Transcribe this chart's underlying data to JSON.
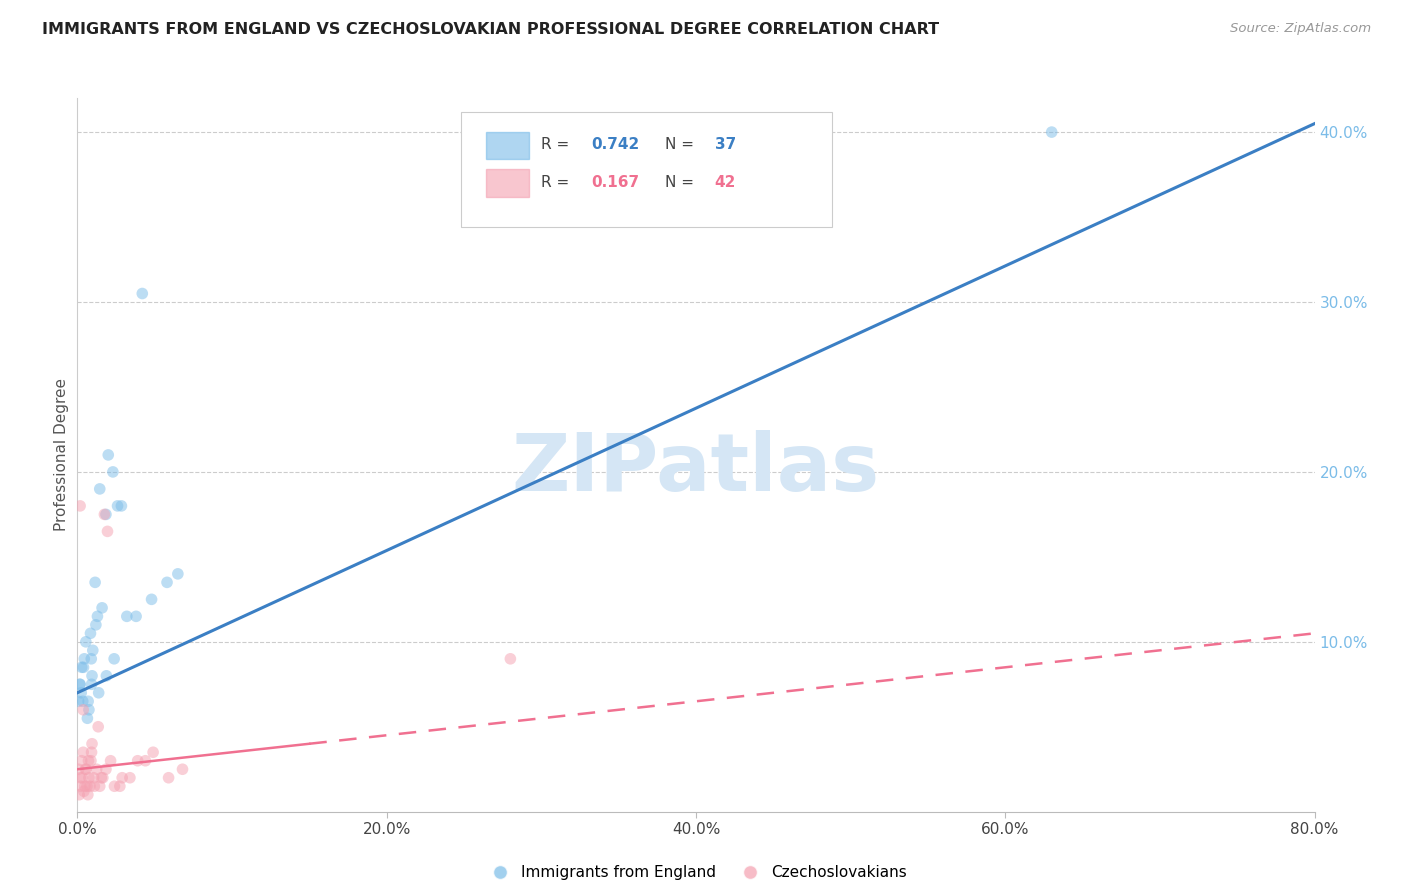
{
  "title": "IMMIGRANTS FROM ENGLAND VS CZECHOSLOVAKIAN PROFESSIONAL DEGREE CORRELATION CHART",
  "source": "Source: ZipAtlas.com",
  "ylabel": "Professional Degree",
  "x_min": 0.0,
  "x_max": 80.0,
  "y_min": 0.0,
  "y_max": 42.0,
  "yticks": [
    10,
    20,
    30,
    40
  ],
  "xticks": [
    0,
    20,
    40,
    60,
    80
  ],
  "legend_england_label": "Immigrants from England",
  "legend_czech_label": "Czechoslovakians",
  "blue_color": "#7BBCE8",
  "pink_color": "#F4A0B0",
  "blue_line_color": "#3B7FC4",
  "pink_line_color": "#F07090",
  "watermark": "ZIPatlas",
  "watermark_color": "#D5E6F5",
  "r_england": "0.742",
  "n_england": "37",
  "r_czech": "0.167",
  "n_czech": "42",
  "eng_line_x0": 0.0,
  "eng_line_y0": 7.0,
  "eng_line_x1": 80.0,
  "eng_line_y1": 40.5,
  "czech_line_x0": 0.0,
  "czech_line_y0": 2.5,
  "czech_line_x1": 80.0,
  "czech_line_y1": 10.5,
  "czech_solid_end": 15.0,
  "england_x": [
    0.15,
    0.4,
    0.25,
    0.7,
    0.9,
    1.0,
    1.3,
    0.35,
    0.55,
    0.85,
    0.95,
    1.15,
    1.2,
    1.45,
    1.6,
    1.85,
    2.0,
    2.3,
    2.6,
    3.2,
    3.8,
    4.8,
    5.8,
    6.5,
    0.08,
    0.28,
    0.45,
    0.65,
    0.92,
    1.38,
    1.88,
    2.38,
    2.85,
    4.2,
    0.18,
    0.75,
    63.0
  ],
  "england_y": [
    7.5,
    8.5,
    7.0,
    6.5,
    9.0,
    9.5,
    11.5,
    6.5,
    10.0,
    10.5,
    8.0,
    13.5,
    11.0,
    19.0,
    12.0,
    17.5,
    21.0,
    20.0,
    18.0,
    11.5,
    11.5,
    12.5,
    13.5,
    14.0,
    6.5,
    8.5,
    9.0,
    5.5,
    7.5,
    7.0,
    8.0,
    9.0,
    18.0,
    30.5,
    7.5,
    6.0,
    40.0
  ],
  "czech_x": [
    0.08,
    0.18,
    0.28,
    0.38,
    0.48,
    0.58,
    0.68,
    0.75,
    0.88,
    0.95,
    1.1,
    1.35,
    1.55,
    1.75,
    1.95,
    2.4,
    2.9,
    3.9,
    4.9,
    5.9,
    6.8,
    0.12,
    0.22,
    0.32,
    0.42,
    0.52,
    0.62,
    0.72,
    0.82,
    0.92,
    1.05,
    1.25,
    1.45,
    1.65,
    1.85,
    2.15,
    2.75,
    3.4,
    4.4,
    28.0,
    0.18,
    0.38
  ],
  "czech_y": [
    2.5,
    2.0,
    3.0,
    3.5,
    1.5,
    2.5,
    1.0,
    2.0,
    3.0,
    4.0,
    1.5,
    5.0,
    2.0,
    17.5,
    16.5,
    1.5,
    2.0,
    3.0,
    3.5,
    2.0,
    2.5,
    1.0,
    1.5,
    2.0,
    1.2,
    2.5,
    1.5,
    3.0,
    1.5,
    3.5,
    2.0,
    2.5,
    1.5,
    2.0,
    2.5,
    3.0,
    1.5,
    2.0,
    3.0,
    9.0,
    18.0,
    6.0
  ]
}
